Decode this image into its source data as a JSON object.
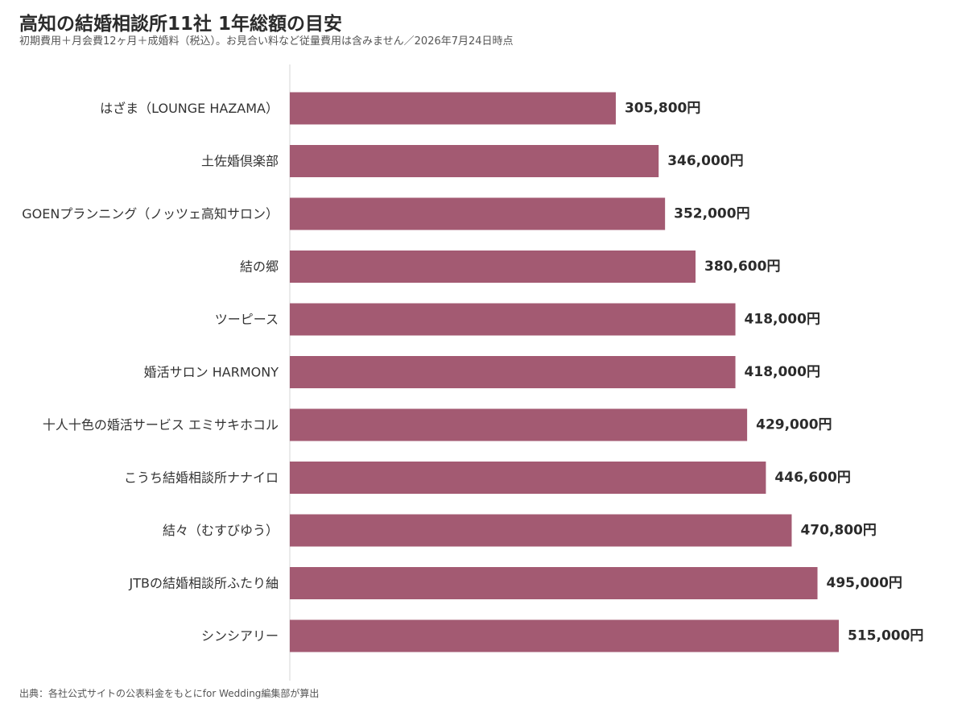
{
  "chart_data": {
    "type": "bar",
    "orientation": "horizontal",
    "title": "高知の結婚相談所11社 1年総額の目安",
    "subtitle": "初期費用＋月会費12ヶ月＋成婚料（税込）。お見合い料など従量費用は含みません／2026年7月24日時点",
    "source": "出典：各社公式サイトの公表料金をもとにfor Wedding編集部が算出",
    "categories": [
      "はざま（LOUNGE HAZAMA）",
      "土佐婚倶楽部",
      "GOENプランニング（ノッツェ高知サロン）",
      "結の郷",
      "ツーピース",
      "婚活サロン HARMONY",
      "十人十色の婚活サービス エミサキホコル",
      "こうち結婚相談所ナナイロ",
      "結々（むすびゆう）",
      "JTBの結婚相談所ふたり紬",
      "シンシアリー"
    ],
    "values": [
      305800,
      346000,
      352000,
      380600,
      418000,
      418000,
      429000,
      446600,
      470800,
      495000,
      515000
    ],
    "data_labels": [
      "305,800円",
      "346,000円",
      "352,000円",
      "380,600円",
      "418,000円",
      "418,000円",
      "429,000円",
      "446,600円",
      "470,800円",
      "495,000円",
      "515,000円"
    ],
    "unit": "円",
    "xlim": [
      0,
      515000
    ],
    "grid": false,
    "legend": "none",
    "bar_color": "#a35a72"
  }
}
